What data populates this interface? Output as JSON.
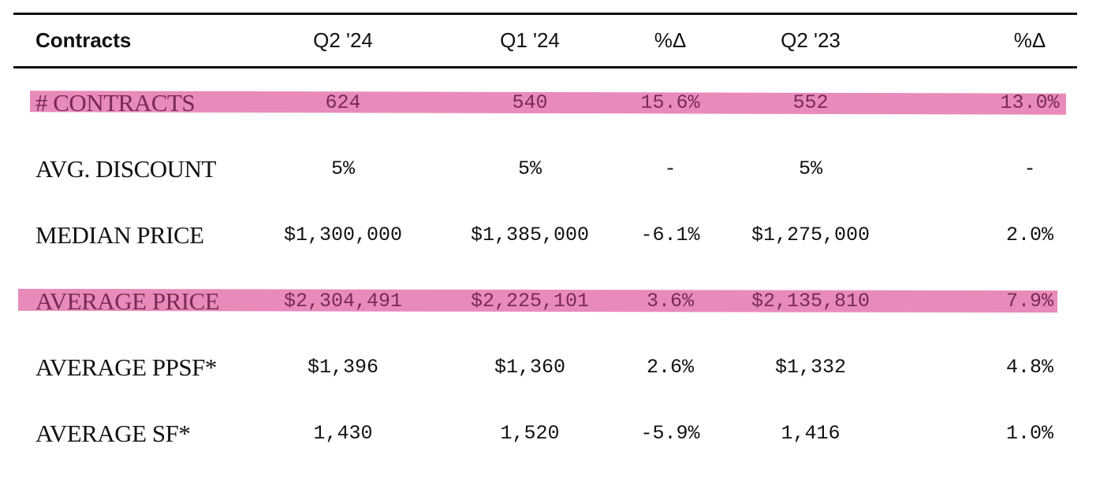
{
  "table": {
    "header": {
      "label": "Contracts",
      "columns": [
        "Q2 '24",
        "Q1 '24",
        "%Δ",
        "Q2 '23",
        "%Δ"
      ]
    },
    "rows": [
      {
        "label": "# CONTRACTS",
        "values": [
          "624",
          "540",
          "15.6%",
          "552",
          "13.0%"
        ],
        "highlighted": true
      },
      {
        "label": "AVG. DISCOUNT",
        "values": [
          "5%",
          "5%",
          "-",
          "5%",
          "-"
        ],
        "highlighted": false
      },
      {
        "label": "MEDIAN PRICE",
        "values": [
          "$1,300,000",
          "$1,385,000",
          "-6.1%",
          "$1,275,000",
          "2.0%"
        ],
        "highlighted": false
      },
      {
        "label": "AVERAGE PRICE",
        "values": [
          "$2,304,491",
          "$2,225,101",
          "3.6%",
          "$2,135,810",
          "7.9%"
        ],
        "highlighted": true
      },
      {
        "label": "AVERAGE PPSF*",
        "values": [
          "$1,396",
          "$1,360",
          "2.6%",
          "$1,332",
          "4.8%"
        ],
        "highlighted": false
      },
      {
        "label": "AVERAGE SF*",
        "values": [
          "1,430",
          "1,520",
          "-5.9%",
          "1,416",
          "1.0%"
        ],
        "highlighted": false
      }
    ]
  },
  "colors": {
    "highlight": "#e88bbb",
    "rule": "#111111",
    "text": "#111111"
  }
}
